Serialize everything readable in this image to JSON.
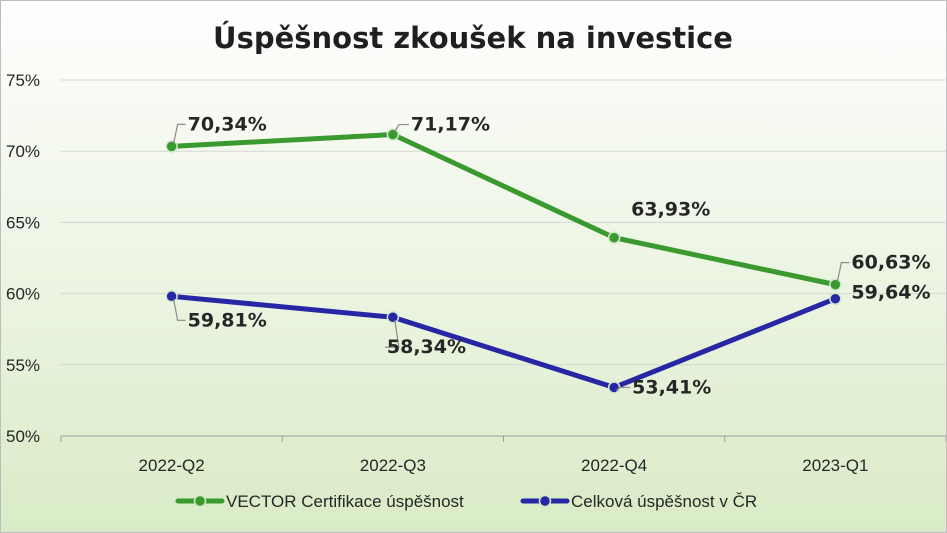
{
  "chart_data": {
    "type": "line",
    "title": "Úspěšnost zkoušek na investice",
    "categories": [
      "2022-Q2",
      "2022-Q3",
      "2022-Q4",
      "2023-Q1"
    ],
    "ylim": [
      50,
      75
    ],
    "y_ticks": [
      50,
      55,
      60,
      65,
      70,
      75
    ],
    "y_tick_labels": [
      "50%",
      "55%",
      "60%",
      "65%",
      "70%",
      "75%"
    ],
    "grid": true,
    "legend_position": "bottom",
    "series": [
      {
        "name": "VECTOR Certifikace úspěšnost",
        "color": "#3a9a2f",
        "values": [
          70.34,
          71.17,
          63.93,
          60.63
        ],
        "labels": [
          "70,34%",
          "71,17%",
          "63,93%",
          "60,63%"
        ]
      },
      {
        "name": "Celková úspěšnost v ČR",
        "color": "#2727a5",
        "values": [
          59.81,
          58.34,
          53.41,
          59.64
        ],
        "labels": [
          "59,81%",
          "58,34%",
          "53,41%",
          "59,64%"
        ]
      }
    ]
  }
}
